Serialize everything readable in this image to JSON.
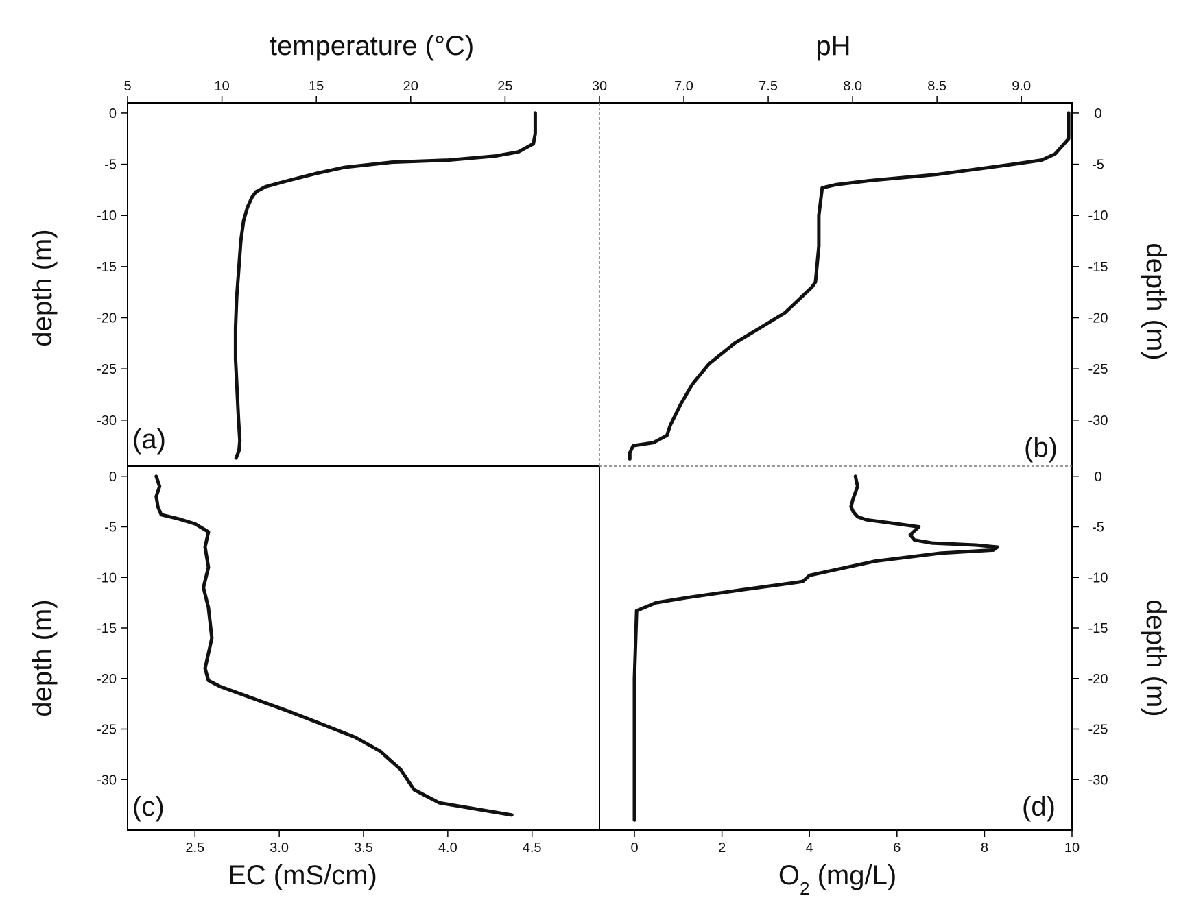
{
  "figure": {
    "line_color": "#111111",
    "frame_color": "#000000",
    "divider_color": "#777777"
  },
  "chart_data": [
    {
      "panel": "a",
      "type": "line",
      "label": "(a)",
      "xlabel": "temperature (°C)",
      "ylabel": "depth (m)",
      "xlim": [
        5,
        30
      ],
      "ylim": [
        -34.5,
        1
      ],
      "xticks": [
        "5",
        "10",
        "15",
        "20",
        "25",
        "30"
      ],
      "xtick_values": [
        5,
        10,
        15,
        20,
        25,
        30
      ],
      "yticks": [
        "0",
        "-5",
        "-10",
        "-15",
        "-20",
        "-25",
        "-30"
      ],
      "ytick_values": [
        0,
        -5,
        -10,
        -15,
        -20,
        -25,
        -30
      ],
      "grid": false,
      "series": [
        {
          "x": [
            26.6,
            26.6,
            26.5,
            25.7,
            24.5,
            22.0,
            19.0,
            16.5,
            15.0,
            13.5,
            12.3,
            11.8,
            11.6,
            11.35,
            11.15,
            11.0,
            10.9,
            10.78,
            10.72,
            10.72,
            10.8,
            10.88,
            10.95,
            10.9,
            10.75
          ],
          "y": [
            0,
            -2.0,
            -3.0,
            -3.8,
            -4.2,
            -4.6,
            -4.8,
            -5.3,
            -5.9,
            -6.6,
            -7.2,
            -7.7,
            -8.2,
            -9.2,
            -10.5,
            -12.5,
            -15,
            -18,
            -21,
            -24,
            -27,
            -30,
            -32,
            -33,
            -33.7
          ]
        }
      ]
    },
    {
      "panel": "b",
      "type": "line",
      "label": "(b)",
      "xlabel": "pH",
      "ylabel": "depth (m)",
      "xlim": [
        6.5,
        9.3
      ],
      "ylim": [
        -34.5,
        1
      ],
      "xticks": [
        "7.0",
        "7.5",
        "8.0",
        "8.5",
        "9.0"
      ],
      "xtick_values": [
        7.0,
        7.5,
        8.0,
        8.5,
        9.0
      ],
      "yticks": [
        "0",
        "-5",
        "-10",
        "-15",
        "-20",
        "-25",
        "-30"
      ],
      "ytick_values": [
        0,
        -5,
        -10,
        -15,
        -20,
        -25,
        -30
      ],
      "grid": false,
      "series": [
        {
          "x": [
            9.28,
            9.28,
            9.28,
            9.2,
            9.12,
            8.95,
            8.5,
            8.1,
            7.9,
            7.82,
            7.8,
            7.8,
            7.78,
            7.76,
            7.6,
            7.45,
            7.3,
            7.15,
            7.05,
            6.98,
            6.92,
            6.9,
            6.82,
            6.7,
            6.68,
            6.68
          ],
          "y": [
            0,
            -1,
            -2.5,
            -4.0,
            -4.6,
            -5.0,
            -6.0,
            -6.6,
            -7.0,
            -7.3,
            -10,
            -13,
            -16.5,
            -17.0,
            -19.5,
            -21.0,
            -22.5,
            -24.5,
            -26.5,
            -28.5,
            -30.5,
            -31.5,
            -32.2,
            -32.5,
            -33.2,
            -33.8
          ]
        }
      ]
    },
    {
      "panel": "c",
      "type": "line",
      "label": "(c)",
      "xlabel": "EC (mS/cm)",
      "ylabel": "depth (m)",
      "xlim": [
        2.1,
        4.9
      ],
      "ylim": [
        -35,
        1
      ],
      "xticks": [
        "2.5",
        "3.0",
        "3.5",
        "4.0",
        "4.5"
      ],
      "xtick_values": [
        2.5,
        3.0,
        3.5,
        4.0,
        4.5
      ],
      "yticks": [
        "0",
        "-5",
        "-10",
        "-15",
        "-20",
        "-25",
        "-30"
      ],
      "ytick_values": [
        0,
        -5,
        -10,
        -15,
        -20,
        -25,
        -30
      ],
      "grid": false,
      "series": [
        {
          "x": [
            2.27,
            2.29,
            2.27,
            2.28,
            2.3,
            2.4,
            2.5,
            2.58,
            2.56,
            2.58,
            2.55,
            2.58,
            2.6,
            2.56,
            2.58,
            2.65,
            2.85,
            3.05,
            3.25,
            3.45,
            3.6,
            3.72,
            3.8,
            3.95,
            4.2,
            4.38
          ],
          "y": [
            0,
            -1,
            -2,
            -3,
            -3.8,
            -4.2,
            -4.7,
            -5.5,
            -7,
            -9,
            -11,
            -13,
            -16,
            -19,
            -20.2,
            -20.8,
            -22,
            -23.2,
            -24.5,
            -25.8,
            -27.2,
            -29,
            -31,
            -32.3,
            -33,
            -33.5
          ]
        }
      ]
    },
    {
      "panel": "d",
      "type": "line",
      "label": "(d)",
      "xlabel": "O2 (mg/L)",
      "ylabel": "depth (m)",
      "xlim": [
        -0.8,
        10
      ],
      "ylim": [
        -35,
        1
      ],
      "xticks": [
        "0",
        "2",
        "4",
        "6",
        "8",
        "10"
      ],
      "xtick_values": [
        0,
        2,
        4,
        6,
        8,
        10
      ],
      "yticks": [
        "0",
        "-5",
        "-10",
        "-15",
        "-20",
        "-25",
        "-30"
      ],
      "ytick_values": [
        0,
        -5,
        -10,
        -15,
        -20,
        -25,
        -30
      ],
      "grid": false,
      "series": [
        {
          "x": [
            5.05,
            5.1,
            5.0,
            4.95,
            5.0,
            5.1,
            5.3,
            6.0,
            6.5,
            6.3,
            6.4,
            6.8,
            7.8,
            8.3,
            8.2,
            7.0,
            5.5,
            4.0,
            3.85,
            3.7,
            2.5,
            1.2,
            0.5,
            0.05,
            0.0,
            0.0
          ],
          "y": [
            0,
            -1,
            -2.2,
            -3,
            -3.5,
            -4.0,
            -4.3,
            -4.7,
            -5.0,
            -5.8,
            -6.3,
            -6.6,
            -6.8,
            -7.0,
            -7.3,
            -7.6,
            -8.4,
            -9.8,
            -10.4,
            -10.5,
            -11.2,
            -12.0,
            -12.5,
            -13.3,
            -20,
            -34
          ]
        }
      ]
    }
  ]
}
